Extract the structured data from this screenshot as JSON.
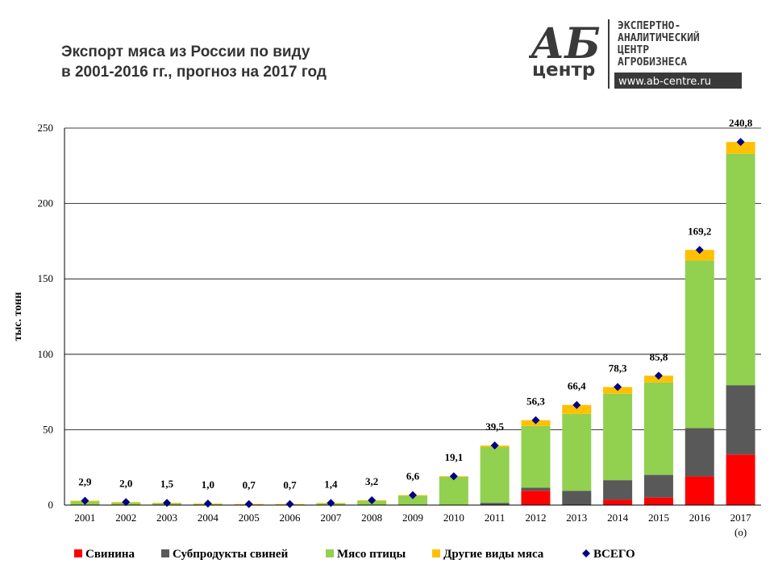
{
  "header": {
    "title_line1": "Экспорт мяса из России по виду",
    "title_line2": "в 2001-2016 гг., прогноз на 2017 год"
  },
  "logo": {
    "mark": "АБ",
    "mark_sub": "центр",
    "lines": [
      "ЭКСПЕРТНО-",
      "АНАЛИТИЧЕСКИЙ",
      "ЦЕНТР",
      "АГРОБИЗНЕСА"
    ],
    "url": "www.ab-centre.ru"
  },
  "chart_data": {
    "type": "bar",
    "stacked": true,
    "title": "Экспорт мяса из России по виду в 2001-2016 гг., прогноз на 2017 год",
    "ylabel": "тыс. тонн",
    "xlabel": "",
    "ylim": [
      0,
      250
    ],
    "yticks": [
      0,
      50,
      100,
      150,
      200,
      250
    ],
    "grid": true,
    "legend_position": "bottom",
    "categories": [
      "2001",
      "2002",
      "2003",
      "2004",
      "2005",
      "2006",
      "2007",
      "2008",
      "2009",
      "2010",
      "2011",
      "2012",
      "2013",
      "2014",
      "2015",
      "2016",
      "2017"
    ],
    "category_notes": {
      "2017": "(о)"
    },
    "series": [
      {
        "name": "Свинина",
        "color": "#ff0000",
        "values": [
          0,
          0,
          0,
          0,
          0,
          0,
          0,
          0,
          0,
          0,
          0,
          9.5,
          0,
          3.5,
          5,
          19,
          33.5
        ]
      },
      {
        "name": "Субпродукты свиней",
        "color": "#595959",
        "values": [
          0,
          0,
          0,
          0,
          0,
          0,
          0,
          0,
          0,
          0,
          1.5,
          2,
          9.5,
          13,
          15,
          32,
          46
        ]
      },
      {
        "name": "Мясо птицы",
        "color": "#92d050",
        "values": [
          2.4,
          1.7,
          1.3,
          0.8,
          0.6,
          0.6,
          1.2,
          2.9,
          6.2,
          18.8,
          37,
          41,
          51,
          57.3,
          61.3,
          111.2,
          153.5
        ]
      },
      {
        "name": "Другие виды мяса",
        "color": "#ffc000",
        "values": [
          0.5,
          0.3,
          0.2,
          0.2,
          0.1,
          0.1,
          0.2,
          0.3,
          0.4,
          0.3,
          1,
          3.8,
          5.9,
          4.5,
          4.5,
          7,
          7.8
        ]
      }
    ],
    "total": {
      "name": "ВСЕГО",
      "color": "#000080",
      "marker": "diamond",
      "values": [
        2.9,
        2.0,
        1.5,
        1.0,
        0.7,
        0.7,
        1.4,
        3.2,
        6.6,
        19.1,
        39.5,
        56.3,
        66.4,
        78.3,
        85.8,
        169.2,
        240.8
      ],
      "labels": [
        "2,9",
        "2,0",
        "1,5",
        "1,0",
        "0,7",
        "0,7",
        "1,4",
        "3,2",
        "6,6",
        "19,1",
        "39,5",
        "56,3",
        "66,4",
        "78,3",
        "85,8",
        "169,2",
        "240,8"
      ]
    }
  }
}
